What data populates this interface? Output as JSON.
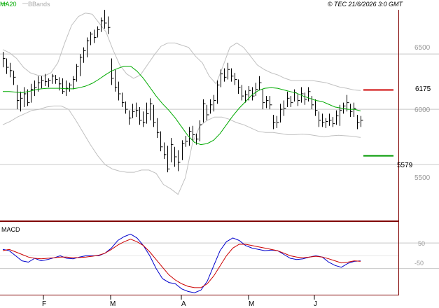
{
  "header": {
    "legend_ma": "MA20",
    "legend_bb": "BBands",
    "copyright": "© TEC 21/6/2026 3:0 GMT"
  },
  "colors": {
    "ma": "#00aa00",
    "bbands": "#c0c0c0",
    "price": "#000000",
    "macd": "#0000cc",
    "signal": "#cc0000",
    "resistance": "#cc0000",
    "support": "#009900",
    "axis": "#800000",
    "grid": "#c8c8c8",
    "legend_bb_text": "#aaaaaa"
  },
  "chart_data": [
    {
      "type": "line",
      "subtype": "ohlc-bars",
      "title": "",
      "x_labels": [
        "F",
        "M",
        "A",
        "M",
        "J"
      ],
      "y_ticks": [
        5500,
        6000,
        6500
      ],
      "ylim": [
        5000,
        6900
      ],
      "grid": true,
      "legend": [
        "MA20",
        "BBands"
      ],
      "levels": [
        {
          "name": "resistance",
          "value": 6175,
          "label": "6175"
        },
        {
          "name": "support",
          "value": 5579,
          "label": "5579"
        }
      ],
      "price_bars": [
        [
          6520,
          6380,
          6460
        ],
        [
          6460,
          6320,
          6380
        ],
        [
          6420,
          6290,
          6350
        ],
        [
          6350,
          6220,
          6290
        ],
        [
          6220,
          6000,
          6080
        ],
        [
          6160,
          5980,
          6100
        ],
        [
          6200,
          6020,
          6140
        ],
        [
          6180,
          6030,
          6060
        ],
        [
          6230,
          6060,
          6180
        ],
        [
          6260,
          6120,
          6200
        ],
        [
          6300,
          6160,
          6240
        ],
        [
          6300,
          6190,
          6260
        ],
        [
          6320,
          6210,
          6250
        ],
        [
          6280,
          6200,
          6260
        ],
        [
          6320,
          6230,
          6300
        ],
        [
          6310,
          6230,
          6270
        ],
        [
          6290,
          6170,
          6230
        ],
        [
          6280,
          6140,
          6160
        ],
        [
          6260,
          6120,
          6190
        ],
        [
          6240,
          6160,
          6220
        ],
        [
          6300,
          6180,
          6270
        ],
        [
          6410,
          6250,
          6390
        ],
        [
          6500,
          6300,
          6470
        ],
        [
          6560,
          6420,
          6530
        ],
        [
          6650,
          6470,
          6620
        ],
        [
          6700,
          6580,
          6680
        ],
        [
          6720,
          6600,
          6650
        ],
        [
          6750,
          6650,
          6720
        ],
        [
          6830,
          6700,
          6800
        ],
        [
          6900,
          6730,
          6780
        ],
        [
          6840,
          6680,
          6740
        ],
        [
          6460,
          6220,
          6280
        ],
        [
          6360,
          6160,
          6200
        ],
        [
          6250,
          6080,
          6140
        ],
        [
          6150,
          6020,
          6060
        ],
        [
          6070,
          5960,
          6000
        ],
        [
          5990,
          5860,
          5920
        ],
        [
          6050,
          5920,
          5980
        ],
        [
          6060,
          5930,
          5990
        ],
        [
          6020,
          5860,
          5900
        ],
        [
          5980,
          5840,
          5880
        ],
        [
          6060,
          5870,
          5960
        ],
        [
          6100,
          5900,
          6050
        ],
        [
          6040,
          5840,
          5880
        ],
        [
          5920,
          5740,
          5790
        ],
        [
          5800,
          5620,
          5660
        ],
        [
          5700,
          5550,
          5590
        ],
        [
          5670,
          5430,
          5460
        ],
        [
          5740,
          5520,
          5680
        ],
        [
          5660,
          5480,
          5570
        ],
        [
          5630,
          5440,
          5520
        ],
        [
          5720,
          5540,
          5690
        ],
        [
          5760,
          5660,
          5710
        ],
        [
          5840,
          5670,
          5800
        ],
        [
          5850,
          5720,
          5770
        ],
        [
          5780,
          5680,
          5730
        ],
        [
          5900,
          5710,
          5860
        ],
        [
          6090,
          5880,
          6050
        ],
        [
          6040,
          5900,
          5950
        ],
        [
          6090,
          5960,
          6040
        ],
        [
          6130,
          5980,
          6080
        ],
        [
          6260,
          6050,
          6220
        ],
        [
          6360,
          6200,
          6320
        ],
        [
          6370,
          6250,
          6290
        ],
        [
          6420,
          6270,
          6360
        ],
        [
          6370,
          6250,
          6300
        ],
        [
          6330,
          6220,
          6270
        ],
        [
          6270,
          6140,
          6200
        ],
        [
          6220,
          6080,
          6120
        ],
        [
          6170,
          6060,
          6130
        ],
        [
          6210,
          6080,
          6170
        ],
        [
          6200,
          6080,
          6120
        ],
        [
          6240,
          6120,
          6180
        ],
        [
          6300,
          6170,
          6240
        ],
        [
          6180,
          6000,
          6060
        ],
        [
          6120,
          6010,
          6080
        ],
        [
          6120,
          6000,
          6040
        ],
        [
          5950,
          5820,
          5880
        ],
        [
          5940,
          5830,
          5880
        ],
        [
          6050,
          5880,
          6000
        ],
        [
          6080,
          5940,
          6010
        ],
        [
          6160,
          6020,
          6100
        ],
        [
          6120,
          6020,
          6060
        ],
        [
          6180,
          6070,
          6150
        ],
        [
          6140,
          6030,
          6080
        ],
        [
          6200,
          6060,
          6140
        ],
        [
          6150,
          6040,
          6090
        ],
        [
          6200,
          6070,
          6160
        ],
        [
          6120,
          6000,
          6040
        ],
        [
          6090,
          5940,
          5990
        ],
        [
          5980,
          5840,
          5900
        ],
        [
          5960,
          5840,
          5880
        ],
        [
          5920,
          5830,
          5890
        ],
        [
          5960,
          5850,
          5900
        ],
        [
          5930,
          5840,
          5870
        ],
        [
          5990,
          5860,
          5940
        ],
        [
          6040,
          5850,
          5990
        ],
        [
          6060,
          5960,
          6030
        ],
        [
          6130,
          5980,
          6060
        ],
        [
          6050,
          5930,
          5980
        ],
        [
          6060,
          5930,
          6010
        ],
        [
          5950,
          5820,
          5880
        ],
        [
          5940,
          5840,
          5900
        ]
      ],
      "ma20": [
        6160,
        6160,
        6155,
        6150,
        6160,
        6175,
        6185,
        6190,
        6190,
        6190,
        6185,
        6185,
        6195,
        6210,
        6235,
        6270,
        6310,
        6345,
        6370,
        6390,
        6390,
        6345,
        6280,
        6200,
        6120,
        6050,
        5990,
        5920,
        5840,
        5760,
        5700,
        5680,
        5690,
        5720,
        5780,
        5860,
        5940,
        6010,
        6070,
        6130,
        6170,
        6190,
        6195,
        6190,
        6175,
        6160,
        6145,
        6120,
        6100,
        6080,
        6070,
        6045,
        6020,
        6010,
        6000,
        6000,
        5985
      ],
      "bb_upper": [
        6540,
        6510,
        6460,
        6380,
        6330,
        6310,
        6300,
        6330,
        6420,
        6600,
        6760,
        6840,
        6870,
        6860,
        6780,
        6700,
        6540,
        6400,
        6320,
        6280,
        6310,
        6400,
        6490,
        6570,
        6600,
        6600,
        6580,
        6560,
        6480,
        6420,
        6300,
        6230,
        6390,
        6560,
        6600,
        6560,
        6480,
        6400,
        6360,
        6330,
        6310,
        6280,
        6260,
        6260,
        6260,
        6260,
        6250,
        6240,
        6220,
        6200,
        6190,
        6175,
        6170
      ],
      "bb_lower": [
        5860,
        5890,
        5930,
        5960,
        5990,
        6000,
        6020,
        6030,
        6030,
        6000,
        5900,
        5790,
        5680,
        5580,
        5500,
        5460,
        5440,
        5430,
        5430,
        5450,
        5450,
        5420,
        5320,
        5280,
        5230,
        5380,
        5700,
        5850,
        5900,
        5930,
        5930,
        5910,
        5880,
        5860,
        5830,
        5800,
        5790,
        5790,
        5780,
        5770,
        5770,
        5775,
        5770,
        5760,
        5750,
        5760,
        5765,
        5760,
        5755,
        5745
      ]
    },
    {
      "type": "line",
      "title": "MACD",
      "y_ticks": [
        50,
        -50
      ],
      "ylim": [
        -150,
        130
      ],
      "grid": true,
      "series": [
        {
          "name": "MACD",
          "values": [
            25,
            20,
            0,
            -20,
            -25,
            -10,
            -20,
            -15,
            -8,
            0,
            -10,
            -12,
            -5,
            0,
            0,
            0,
            10,
            30,
            60,
            75,
            85,
            70,
            40,
            0,
            -50,
            -90,
            -105,
            -110,
            -130,
            -140,
            -145,
            -135,
            -100,
            -40,
            20,
            55,
            70,
            60,
            40,
            30,
            25,
            20,
            22,
            20,
            5,
            -10,
            -15,
            -12,
            -5,
            0,
            -5,
            -25,
            -38,
            -45,
            -30,
            -22,
            -20
          ]
        },
        {
          "name": "Signal",
          "values": [
            20,
            25,
            15,
            5,
            -5,
            -10,
            -12,
            -10,
            -8,
            -5,
            -5,
            -8,
            -7,
            -5,
            -2,
            2,
            10,
            25,
            42,
            55,
            65,
            55,
            40,
            15,
            -15,
            -45,
            -75,
            -95,
            -110,
            -120,
            -125,
            -125,
            -110,
            -80,
            -40,
            0,
            30,
            45,
            45,
            40,
            35,
            30,
            25,
            20,
            10,
            0,
            -5,
            -8,
            -5,
            -2,
            -5,
            -12,
            -20,
            -28,
            -25,
            -20,
            -22
          ]
        }
      ]
    }
  ]
}
